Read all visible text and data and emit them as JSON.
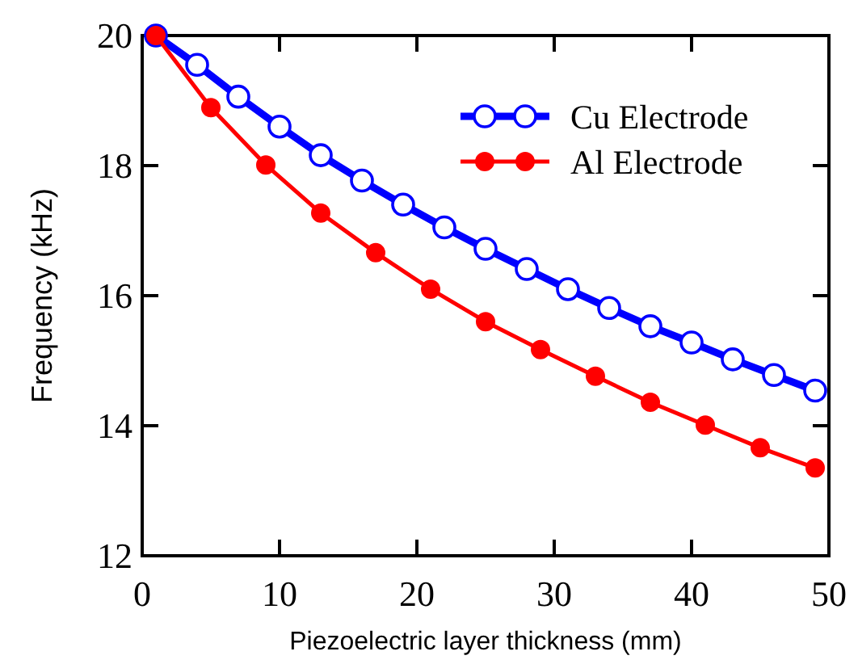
{
  "chart_data": {
    "type": "line",
    "xlabel": "Piezoelectric layer thickness (mm)",
    "ylabel": "Frequency (kHz)",
    "xlim": [
      0,
      50
    ],
    "xticks": [
      0,
      10,
      20,
      30,
      40,
      50
    ],
    "ylim": [
      12,
      20
    ],
    "yticks": [
      12,
      14,
      16,
      18,
      20
    ],
    "marker": "circle",
    "legend": "top right",
    "grid": false,
    "series": [
      {
        "name": "Cu Electrode",
        "color": "#0000ff",
        "x": [
          1,
          4,
          7,
          10,
          13,
          16,
          19,
          22,
          25,
          28,
          31,
          34,
          37,
          40,
          43,
          46,
          49
        ],
        "values": [
          20,
          19.55,
          19.06,
          18.6,
          18.16,
          17.77,
          17.4,
          17.05,
          16.72,
          16.41,
          16.1,
          15.81,
          15.53,
          15.28,
          15.02,
          14.78,
          14.54
        ]
      },
      {
        "name": "Al Electrode",
        "color": "#ff0000",
        "x": [
          1,
          5,
          9,
          13,
          17,
          21,
          25,
          29,
          33,
          37,
          41,
          45,
          49
        ],
        "values": [
          20,
          18.89,
          18.01,
          17.27,
          16.66,
          16.1,
          15.6,
          15.17,
          14.76,
          14.36,
          14.01,
          13.66,
          13.35
        ]
      }
    ]
  }
}
